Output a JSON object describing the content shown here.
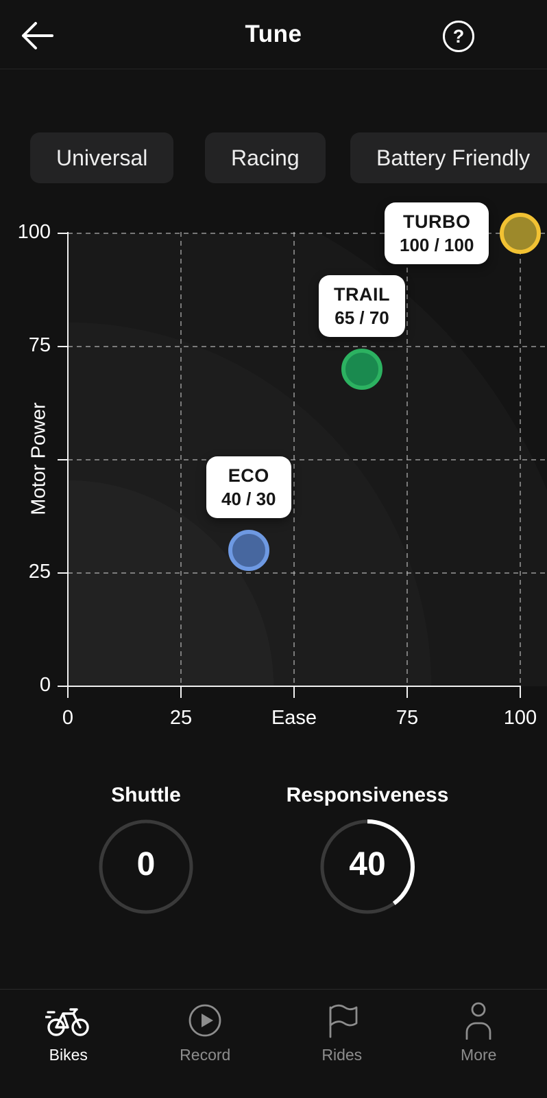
{
  "header": {
    "title": "Tune",
    "back_icon": "arrow-left-icon",
    "help_icon": "help-icon"
  },
  "presets": {
    "chips": [
      {
        "label": "Universal"
      },
      {
        "label": "Racing"
      },
      {
        "label": "Battery Friendly"
      }
    ]
  },
  "chart_data": {
    "type": "scatter",
    "xlabel": "Ease",
    "ylabel": "Motor Power",
    "xlim": [
      0,
      100
    ],
    "ylim": [
      0,
      100
    ],
    "xticks": [
      0,
      25,
      50,
      75,
      100
    ],
    "yticks": [
      0,
      25,
      50,
      75,
      100
    ],
    "grid": "dashed",
    "legend": "none",
    "points": [
      {
        "name": "TURBO",
        "x": 100,
        "y": 100,
        "label": "100 / 100",
        "ring_color": "#f2c233",
        "fill_color": "#9d892b"
      },
      {
        "name": "TRAIL",
        "x": 65,
        "y": 70,
        "label": "65 / 70",
        "ring_color": "#2cb261",
        "fill_color": "#1a8a4f"
      },
      {
        "name": "ECO",
        "x": 40,
        "y": 30,
        "label": "40 / 30",
        "ring_color": "#6e99e2",
        "fill_color": "#47679f"
      }
    ]
  },
  "dials": [
    {
      "label": "Shuttle",
      "value": "0",
      "percent": 0
    },
    {
      "label": "Responsiveness",
      "value": "40",
      "percent": 40
    }
  ],
  "nav": {
    "items": [
      {
        "label": "Bikes",
        "icon": "bike-icon",
        "active": true
      },
      {
        "label": "Record",
        "icon": "record-icon",
        "active": false
      },
      {
        "label": "Rides",
        "icon": "flag-icon",
        "active": false
      },
      {
        "label": "More",
        "icon": "person-icon",
        "active": false
      }
    ]
  },
  "colors": {
    "background": "#121212",
    "chip_background": "#232324",
    "tooltip_background": "#ffffff",
    "grid_line": "#c8c8c8",
    "axis_line": "#f2f2f2",
    "inactive_nav": "#8d8d8d",
    "dial_track": "#3a3a3a",
    "dial_progress": "#ffffff"
  }
}
